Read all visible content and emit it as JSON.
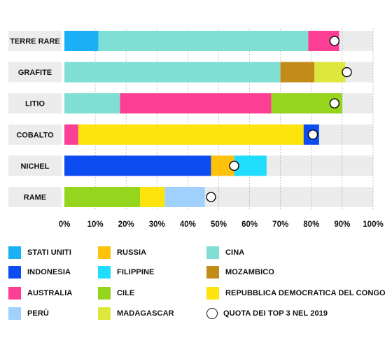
{
  "chart_data": {
    "type": "bar",
    "stacked": true,
    "orientation": "horizontal",
    "categories": [
      "TERRE RARE",
      "GRAFITE",
      "LITIO",
      "COBALTO",
      "NICHEL",
      "RAME"
    ],
    "xlim": [
      0,
      100
    ],
    "xticks": [
      "0%",
      "10%",
      "20%",
      "30%",
      "40%",
      "50%",
      "60%",
      "70%",
      "80%",
      "90%",
      "100%"
    ],
    "grid": true,
    "legend_position": "bottom",
    "series": [
      {
        "name": "STATI UNITI",
        "color": "#1ab0f5",
        "values": [
          11,
          0,
          0,
          0,
          0,
          0
        ]
      },
      {
        "name": "CINA",
        "color": "#80dfd4",
        "values": [
          68,
          70,
          18,
          0,
          0,
          0
        ]
      },
      {
        "name": "AUSTRALIA",
        "color": "#fd3e95",
        "values": [
          10,
          0,
          49,
          4.5,
          0,
          0
        ]
      },
      {
        "name": "MOZAMBICO",
        "color": "#c38c19",
        "values": [
          0,
          11,
          0,
          0,
          0,
          0
        ]
      },
      {
        "name": "MADAGASCAR",
        "color": "#dee83c",
        "values": [
          0,
          10,
          0,
          0,
          0,
          0
        ]
      },
      {
        "name": "CILE",
        "color": "#95d51d",
        "values": [
          0,
          0,
          23,
          0,
          0,
          24.5
        ]
      },
      {
        "name": "REPUBBLICA DEMOCRATICA DEL CONGO",
        "color": "#fde40d",
        "values": [
          0,
          0,
          0,
          73,
          0,
          8
        ]
      },
      {
        "name": "INDONESIA",
        "color": "#0d4cf0",
        "values": [
          0,
          0,
          0,
          5,
          47.5,
          0
        ]
      },
      {
        "name": "RUSSIA",
        "color": "#fec20a",
        "values": [
          0,
          0,
          0,
          0,
          7.5,
          0
        ]
      },
      {
        "name": "FILIPPINE",
        "color": "#20dcfd",
        "values": [
          0,
          0,
          0,
          0,
          10.5,
          0
        ]
      },
      {
        "name": "PERÙ",
        "color": "#a0d1fd",
        "values": [
          0,
          0,
          0,
          0,
          0,
          13
        ]
      }
    ],
    "top3_2019": {
      "name": "QUOTA DEI TOP 3 NEL 2019",
      "values": [
        87.5,
        91.5,
        87.5,
        80.5,
        55,
        47.5
      ]
    }
  },
  "legend": [
    {
      "label": "STATI UNITI",
      "color": "#1ab0f5",
      "type": "swatch"
    },
    {
      "label": "RUSSIA",
      "color": "#fec20a",
      "type": "swatch"
    },
    {
      "label": "CINA",
      "color": "#80dfd4",
      "type": "swatch"
    },
    {
      "label": "INDONESIA",
      "color": "#0d4cf0",
      "type": "swatch"
    },
    {
      "label": "FILIPPINE",
      "color": "#20dcfd",
      "type": "swatch"
    },
    {
      "label": "MOZAMBICO",
      "color": "#c38c19",
      "type": "swatch"
    },
    {
      "label": "AUSTRALIA",
      "color": "#fd3e95",
      "type": "swatch"
    },
    {
      "label": "CILE",
      "color": "#95d51d",
      "type": "swatch"
    },
    {
      "label": "REPUBBLICA DEMOCRATICA DEL CONGO",
      "color": "#fde40d",
      "type": "swatch"
    },
    {
      "label": "PERÙ",
      "color": "#a0d1fd",
      "type": "swatch"
    },
    {
      "label": "MADAGASCAR",
      "color": "#dee83c",
      "type": "swatch"
    },
    {
      "label": "QUOTA DEI TOP 3 NEL 2019",
      "type": "circle"
    }
  ]
}
